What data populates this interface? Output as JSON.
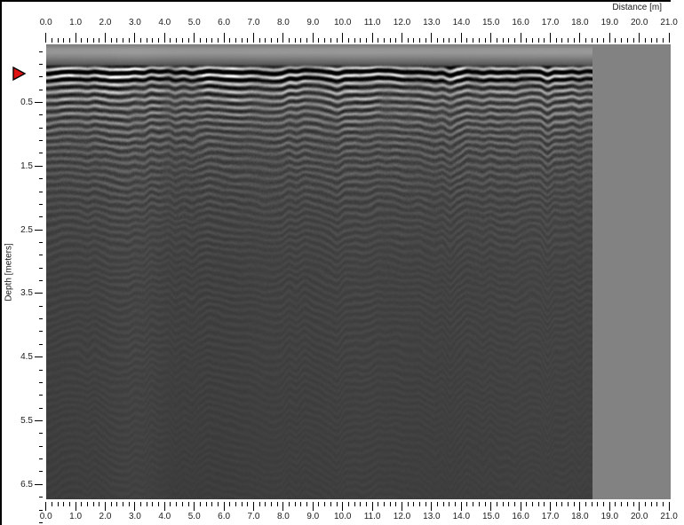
{
  "chart_data": {
    "type": "heatmap",
    "description": "Grayscale GPR radargram (B-scan). Strong horizontal direct-wave banding with ringing and scattered hyperbolic reflections in the upper ~1.5 m, amplitude fading into nearly uniform dark gray below ~3 m. Recorded data ends at about 18.4 m distance; the remaining plot width is a uniform gray no-data region.",
    "x_axis": {
      "label": "Distance [m]",
      "range": [
        0.0,
        21.05
      ],
      "major_tick_step": 1.0,
      "minor_tick_step": 0.2,
      "tick_labels": [
        "0.0",
        "1.0",
        "2.0",
        "3.0",
        "4.0",
        "5.0",
        "6.0",
        "7.0",
        "8.0",
        "9.0",
        "10.0",
        "11.0",
        "12.0",
        "13.0",
        "14.0",
        "15.0",
        "16.0",
        "17.0",
        "18.0",
        "19.0",
        "20.0",
        "21.0"
      ]
    },
    "y_axis": {
      "label": "Depth [meters]",
      "range": [
        -0.41,
        6.72
      ],
      "major_tick_step": 1.0,
      "minor_tick_step": 0.2,
      "tick_labels": [
        "0.5",
        "1.5",
        "2.5",
        "3.5",
        "4.5",
        "5.5",
        "6.5"
      ]
    },
    "data_extent": {
      "distance_min_m": 0.0,
      "distance_max_m": 18.4,
      "depth_of_time_zero_m": 0.0
    },
    "legend": "none",
    "grid": "off",
    "colors": {
      "no_data_region": "#828282",
      "deep_background": "#3f3f3f",
      "axis_text": "#1c1c1c",
      "window_border": "#000000"
    }
  },
  "marker": {
    "label": "time-zero marker",
    "color": "#e01212",
    "depth_m": 0.0
  }
}
